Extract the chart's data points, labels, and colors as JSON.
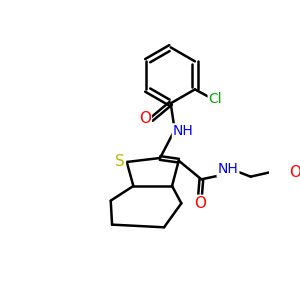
{
  "bg_color": "#ffffff",
  "bond_color": "#000000",
  "bond_width": 1.8,
  "atom_colors": {
    "O": "#ff0000",
    "N": "#0000ff",
    "S": "#bbbb00",
    "Cl": "#00aa00",
    "C": "#000000"
  },
  "font_size": 10
}
